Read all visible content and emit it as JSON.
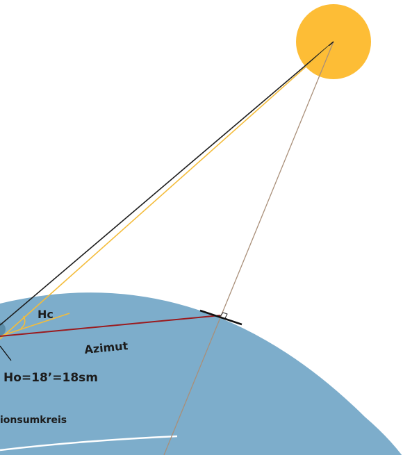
{
  "labels": {
    "hc": "Hc",
    "azimut": "Azimut",
    "ho": "Ho=18’=18sm",
    "circle": "ionsumkreis"
  },
  "colors": {
    "sun": "#FDBD36",
    "earth": "#7DADCB",
    "earth_edge": "#ffffff",
    "sight_line": "#1c1c1c",
    "observed_ray": "#F4BC3A",
    "calculated_ray": "#F4BC3A",
    "azimuth_line": "#9A1B1F",
    "center_line": "#A98F79",
    "position_line": "#111111",
    "observer_dot": "#5C8DA8"
  }
}
